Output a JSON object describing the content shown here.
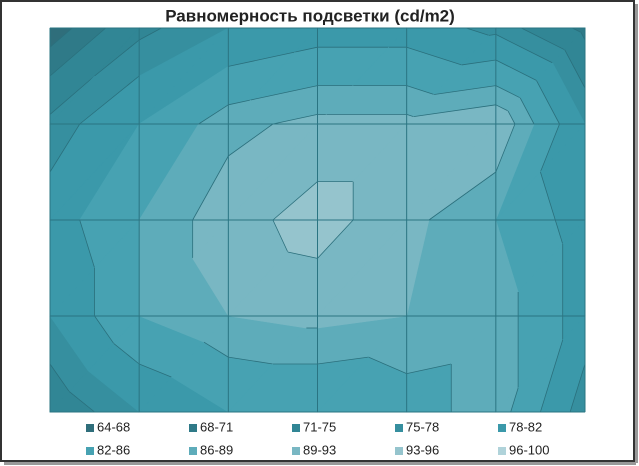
{
  "chart_data": {
    "type": "contour",
    "title": "Равномерность подсветки (cd/m2)",
    "z": [
      [
        66,
        74,
        78,
        80,
        80,
        77,
        70
      ],
      [
        76,
        82,
        88,
        90,
        90,
        92,
        78
      ],
      [
        80,
        86,
        91,
        95,
        90,
        86,
        80
      ],
      [
        78,
        86,
        89,
        90,
        89,
        88,
        80
      ],
      [
        72,
        78,
        82,
        82,
        84,
        88,
        76
      ]
    ],
    "levels": [
      {
        "label": "64-68",
        "from": 64,
        "to": 68,
        "color": "#2f6e7b"
      },
      {
        "label": "68-71",
        "from": 68,
        "to": 71,
        "color": "#2f7a88"
      },
      {
        "label": "71-75",
        "from": 71,
        "to": 75,
        "color": "#318695"
      },
      {
        "label": "75-78",
        "from": 75,
        "to": 78,
        "color": "#368f9f"
      },
      {
        "label": "78-82",
        "from": 78,
        "to": 82,
        "color": "#3b99aa"
      },
      {
        "label": "82-86",
        "from": 82,
        "to": 86,
        "color": "#47a2b2"
      },
      {
        "label": "86-89",
        "from": 86,
        "to": 89,
        "color": "#5eacba"
      },
      {
        "label": "89-93",
        "from": 89,
        "to": 93,
        "color": "#79b7c3"
      },
      {
        "label": "93-96",
        "from": 93,
        "to": 96,
        "color": "#95c4cd"
      },
      {
        "label": "96-100",
        "from": 96,
        "to": 100,
        "color": "#b0d3da"
      }
    ],
    "grid": true
  }
}
